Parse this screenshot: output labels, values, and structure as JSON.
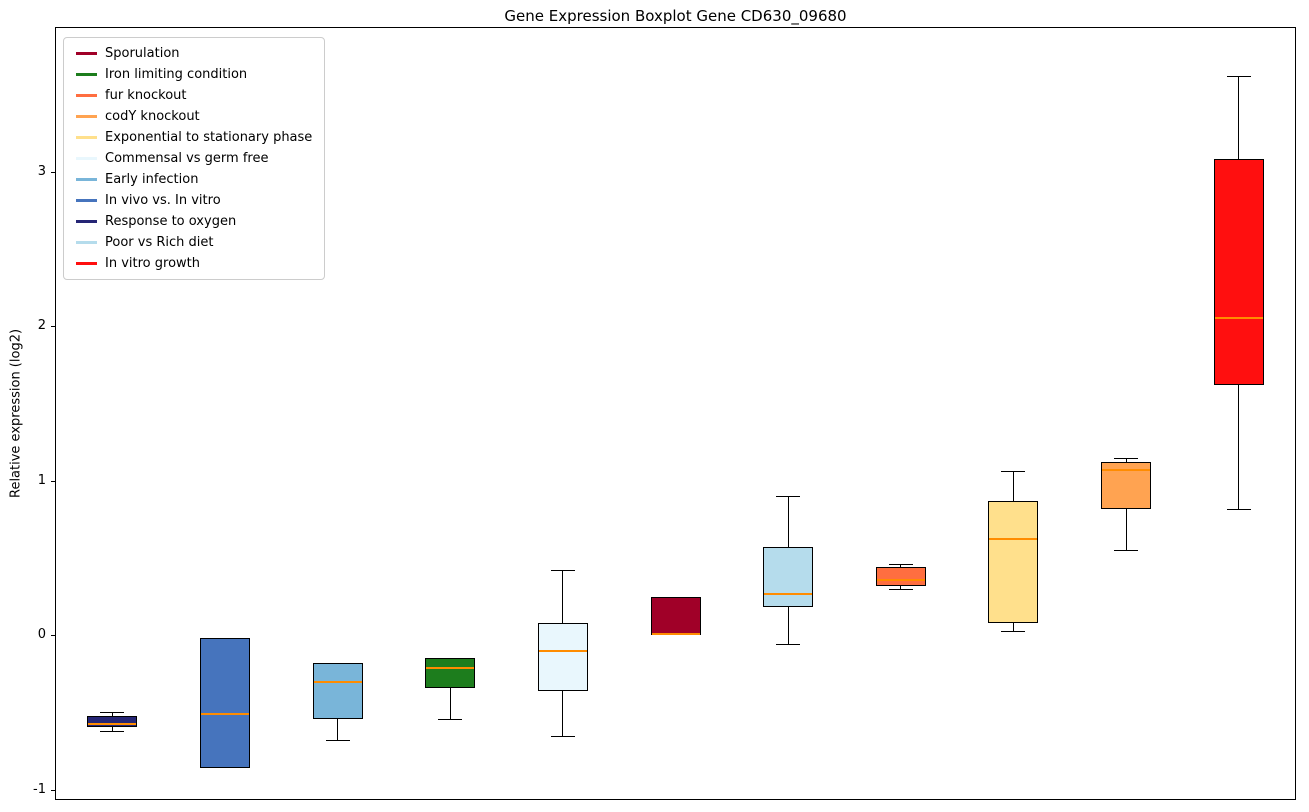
{
  "chart_data": {
    "type": "boxplot",
    "title": "Gene Expression Boxplot Gene CD630_09680",
    "ylabel": "Relative expression (log2)",
    "ylim": [
      -1.06,
      3.93
    ],
    "yticks": [
      3,
      2,
      1,
      0,
      -1
    ],
    "grid": false,
    "legend_position": "upper left",
    "median_color": "#ff8c00",
    "box_edge_color": "#000000",
    "whisker_color": "#000000",
    "legend": [
      {
        "label": "Sporulation",
        "color": "#a00028"
      },
      {
        "label": "Iron limiting condition",
        "color": "#1d7d1d"
      },
      {
        "label": "fur knockout",
        "color": "#ff6e40"
      },
      {
        "label": "codY knockout",
        "color": "#ffa351"
      },
      {
        "label": "Exponential to stationary phase",
        "color": "#ffe08c"
      },
      {
        "label": "Commensal vs germ free",
        "color": "#e9f7fd"
      },
      {
        "label": "Early infection",
        "color": "#79b5d9"
      },
      {
        "label": "In vivo vs. In vitro",
        "color": "#4674bd"
      },
      {
        "label": "Response to oxygen",
        "color": "#252575"
      },
      {
        "label": "Poor vs Rich diet",
        "color": "#b5dcec"
      },
      {
        "label": "In vitro growth",
        "color": "#ff0f0f"
      }
    ],
    "series": [
      {
        "label": "Response to oxygen",
        "color": "#252575",
        "whisker_low": -0.62,
        "q1": -0.595,
        "median": -0.575,
        "q3": -0.525,
        "whisker_high": -0.5
      },
      {
        "label": "In vivo vs. In vitro",
        "color": "#4674bd",
        "whisker_low": -0.86,
        "q1": -0.86,
        "median": -0.51,
        "q3": -0.02,
        "whisker_high": -0.02
      },
      {
        "label": "Early infection",
        "color": "#79b5d9",
        "whisker_low": -0.68,
        "q1": -0.54,
        "median": -0.3,
        "q3": -0.18,
        "whisker_high": -0.18
      },
      {
        "label": "Iron limiting condition",
        "color": "#1d7d1d",
        "whisker_low": -0.54,
        "q1": -0.34,
        "median": -0.21,
        "q3": -0.15,
        "whisker_high": -0.15
      },
      {
        "label": "Commensal vs germ free",
        "color": "#e9f7fd",
        "whisker_low": -0.65,
        "q1": -0.36,
        "median": -0.1,
        "q3": 0.08,
        "whisker_high": 0.42
      },
      {
        "label": "Sporulation",
        "color": "#a00028",
        "whisker_low": 0.0,
        "q1": 0.0,
        "median": 0.01,
        "q3": 0.25,
        "whisker_high": 0.25
      },
      {
        "label": "Poor vs Rich diet",
        "color": "#b5dcec",
        "whisker_low": -0.06,
        "q1": 0.18,
        "median": 0.27,
        "q3": 0.57,
        "whisker_high": 0.9
      },
      {
        "label": "fur knockout",
        "color": "#ff6e40",
        "whisker_low": 0.3,
        "q1": 0.32,
        "median": 0.355,
        "q3": 0.44,
        "whisker_high": 0.46
      },
      {
        "label": "Exponential to stationary phase",
        "color": "#ffe08c",
        "whisker_low": 0.03,
        "q1": 0.08,
        "median": 0.62,
        "q3": 0.87,
        "whisker_high": 1.06
      },
      {
        "label": "codY knockout",
        "color": "#ffa351",
        "whisker_low": 0.55,
        "q1": 0.82,
        "median": 1.07,
        "q3": 1.12,
        "whisker_high": 1.15
      },
      {
        "label": "In vitro growth",
        "color": "#ff0f0f",
        "whisker_low": 0.82,
        "q1": 1.62,
        "median": 2.05,
        "q3": 3.08,
        "whisker_high": 3.62
      }
    ]
  }
}
